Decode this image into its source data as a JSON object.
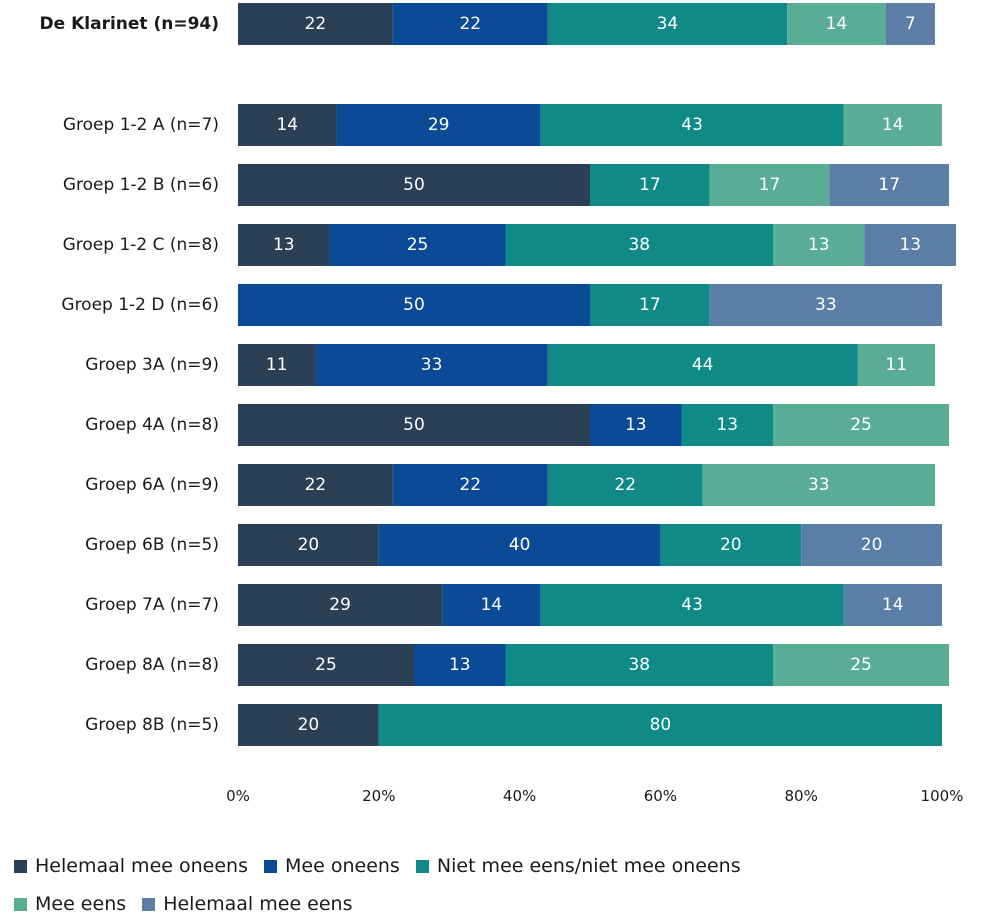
{
  "chart_data": {
    "type": "bar",
    "orientation": "horizontal",
    "stacked": true,
    "categories": [
      "De Klarinet (n=94)",
      "Groep 1-2 A (n=7)",
      "Groep 1-2 B (n=6)",
      "Groep 1-2 C (n=8)",
      "Groep 1-2 D (n=6)",
      "Groep 3A (n=9)",
      "Groep 4A (n=8)",
      "Groep 6A (n=9)",
      "Groep 6B (n=5)",
      "Groep 7A (n=7)",
      "Groep 8A (n=8)",
      "Groep 8B (n=5)"
    ],
    "bold_categories": [
      "De Klarinet (n=94)"
    ],
    "series": [
      {
        "name": "Helemaal mee oneens",
        "color": "#2b4057",
        "values": [
          22,
          14,
          50,
          13,
          0,
          11,
          50,
          22,
          20,
          29,
          25,
          20
        ]
      },
      {
        "name": "Mee oneens",
        "color": "#0b4a96",
        "values": [
          22,
          29,
          0,
          25,
          50,
          33,
          13,
          22,
          40,
          14,
          13,
          0
        ]
      },
      {
        "name": "Niet mee eens/niet mee oneens",
        "color": "#0f8a87",
        "values": [
          34,
          43,
          17,
          38,
          17,
          44,
          13,
          22,
          20,
          43,
          38,
          80
        ]
      },
      {
        "name": "Mee eens",
        "color": "#58ad94",
        "values": [
          14,
          14,
          17,
          13,
          0,
          11,
          25,
          33,
          0,
          0,
          25,
          0
        ]
      },
      {
        "name": "Helemaal mee eens",
        "color": "#5b7ea6",
        "values": [
          7,
          0,
          17,
          13,
          33,
          0,
          0,
          0,
          20,
          14,
          0,
          0
        ]
      }
    ],
    "x_ticks": [
      "0%",
      "20%",
      "40%",
      "60%",
      "80%",
      "100%"
    ],
    "xlim": [
      0,
      100
    ],
    "grid": false,
    "legend_position": "bottom-left"
  }
}
